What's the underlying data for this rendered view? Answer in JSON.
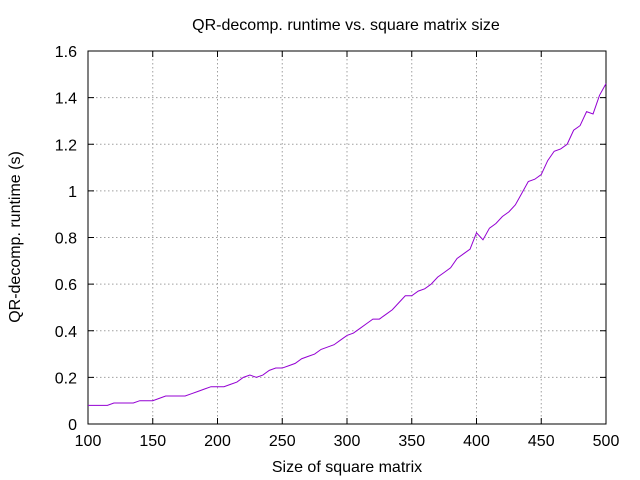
{
  "chart_data": {
    "type": "line",
    "title": "QR-decomp. runtime vs. square matrix size",
    "xlabel": "Size of square matrix",
    "ylabel": "QR-decomp. runtime (s)",
    "xlim": [
      100,
      500
    ],
    "ylim": [
      0,
      1.6
    ],
    "xticks": [
      "100",
      "150",
      "200",
      "250",
      "300",
      "350",
      "400",
      "450",
      "500"
    ],
    "yticks": [
      "0",
      "0.2",
      "0.4",
      "0.6",
      "0.8",
      "1",
      "1.2",
      "1.4",
      "1.6"
    ],
    "grid": true,
    "line_color": "#9400d3",
    "series": [
      {
        "x": [
          100,
          105,
          110,
          115,
          120,
          125,
          130,
          135,
          140,
          145,
          150,
          155,
          160,
          165,
          170,
          175,
          180,
          185,
          190,
          195,
          200,
          205,
          210,
          215,
          220,
          225,
          230,
          235,
          240,
          245,
          250,
          255,
          260,
          265,
          270,
          275,
          280,
          285,
          290,
          295,
          300,
          305,
          310,
          315,
          320,
          325,
          330,
          335,
          340,
          345,
          350,
          355,
          360,
          365,
          370,
          375,
          380,
          385,
          390,
          395,
          400,
          405,
          410,
          415,
          420,
          425,
          430,
          435,
          440,
          445,
          450,
          455,
          460,
          465,
          470,
          475,
          480,
          485,
          490,
          495,
          500
        ],
        "values": [
          0.08,
          0.08,
          0.08,
          0.08,
          0.09,
          0.09,
          0.09,
          0.09,
          0.1,
          0.1,
          0.1,
          0.11,
          0.12,
          0.12,
          0.12,
          0.12,
          0.13,
          0.14,
          0.15,
          0.16,
          0.16,
          0.16,
          0.17,
          0.18,
          0.2,
          0.21,
          0.2,
          0.21,
          0.23,
          0.24,
          0.24,
          0.25,
          0.26,
          0.28,
          0.29,
          0.3,
          0.32,
          0.33,
          0.34,
          0.36,
          0.38,
          0.39,
          0.41,
          0.43,
          0.45,
          0.45,
          0.47,
          0.49,
          0.52,
          0.55,
          0.55,
          0.57,
          0.58,
          0.6,
          0.63,
          0.65,
          0.67,
          0.71,
          0.73,
          0.75,
          0.82,
          0.79,
          0.84,
          0.86,
          0.89,
          0.91,
          0.94,
          0.99,
          1.04,
          1.05,
          1.07,
          1.13,
          1.17,
          1.18,
          1.2,
          1.26,
          1.28,
          1.34,
          1.33,
          1.41,
          1.46
        ]
      }
    ]
  }
}
